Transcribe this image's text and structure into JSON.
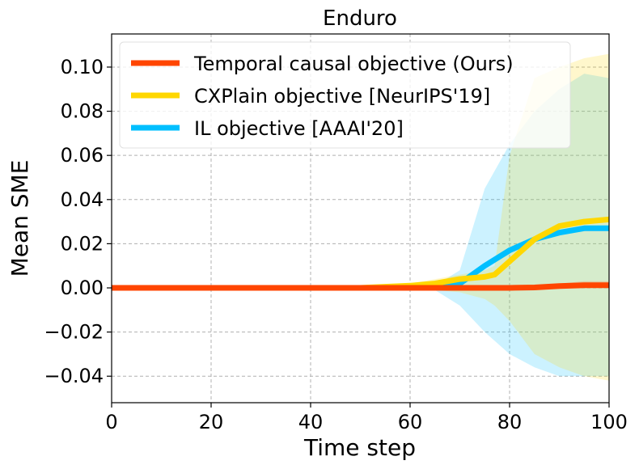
{
  "chart_data": {
    "type": "line",
    "title": "Enduro",
    "xlabel": "Time step",
    "ylabel": "Mean SME",
    "xlim": [
      0,
      100
    ],
    "ylim": [
      -0.052,
      0.115
    ],
    "xticks": [
      0,
      20,
      40,
      60,
      80,
      100
    ],
    "xtick_labels": [
      "0",
      "20",
      "40",
      "60",
      "80",
      "100"
    ],
    "yticks": [
      -0.04,
      -0.02,
      0.0,
      0.02,
      0.04,
      0.06,
      0.08,
      0.1
    ],
    "ytick_labels": [
      "−0.04",
      "−0.02",
      "0.00",
      "0.02",
      "0.04",
      "0.06",
      "0.08",
      "0.10"
    ],
    "grid": true,
    "legend_position": "top-left",
    "series": [
      {
        "name": "IL objective [AAAI'20]",
        "color": "#00bfff",
        "x": [
          0,
          10,
          20,
          30,
          40,
          50,
          60,
          65,
          70,
          75,
          80,
          85,
          90,
          95,
          100
        ],
        "values": [
          0,
          0,
          0,
          0,
          0,
          0,
          0,
          0.0005,
          0.002,
          0.01,
          0.017,
          0.022,
          0.025,
          0.027,
          0.027
        ],
        "band_lower": [
          0,
          0,
          0,
          0,
          0,
          0,
          -0.0005,
          -0.001,
          -0.008,
          -0.02,
          -0.03,
          -0.036,
          -0.04,
          -0.04,
          -0.04
        ],
        "band_upper": [
          0,
          0,
          0,
          0,
          0,
          0,
          0.0005,
          0.001,
          0.008,
          0.045,
          0.065,
          0.08,
          0.09,
          0.097,
          0.095
        ]
      },
      {
        "name": "CXPlain objective [NeurIPS'19]",
        "color": "#ffd700",
        "x": [
          0,
          10,
          20,
          30,
          40,
          50,
          60,
          65,
          70,
          75,
          77,
          80,
          85,
          90,
          95,
          100
        ],
        "values": [
          0,
          0,
          0,
          0,
          0,
          0,
          0.001,
          0.002,
          0.004,
          0.005,
          0.006,
          0.012,
          0.022,
          0.028,
          0.03,
          0.031
        ],
        "band_lower": [
          0,
          0,
          0,
          0,
          0,
          0,
          -0.0005,
          -0.001,
          -0.002,
          -0.005,
          -0.008,
          -0.015,
          -0.03,
          -0.036,
          -0.04,
          -0.042
        ],
        "band_upper": [
          0,
          0,
          0,
          0,
          0,
          0,
          0.002,
          0.004,
          0.006,
          0.008,
          0.01,
          0.06,
          0.095,
          0.1,
          0.104,
          0.106
        ]
      },
      {
        "name": "Temporal causal objective (Ours)",
        "color": "#ff4500",
        "x": [
          0,
          10,
          20,
          30,
          40,
          50,
          60,
          70,
          80,
          85,
          90,
          95,
          100
        ],
        "values": [
          0,
          0,
          0,
          0,
          0,
          0,
          0,
          0,
          0,
          0.0002,
          0.0008,
          0.0012,
          0.0012
        ],
        "band_lower": [
          0,
          0,
          0,
          0,
          0,
          0,
          0,
          0,
          0,
          0,
          0,
          0,
          0
        ],
        "band_upper": [
          0,
          0,
          0,
          0,
          0,
          0,
          0,
          0,
          0,
          0.001,
          0.002,
          0.003,
          0.003
        ]
      }
    ],
    "legend_order": [
      "Temporal causal objective (Ours)",
      "CXPlain objective [NeurIPS'19]",
      "IL objective [AAAI'20]"
    ]
  }
}
